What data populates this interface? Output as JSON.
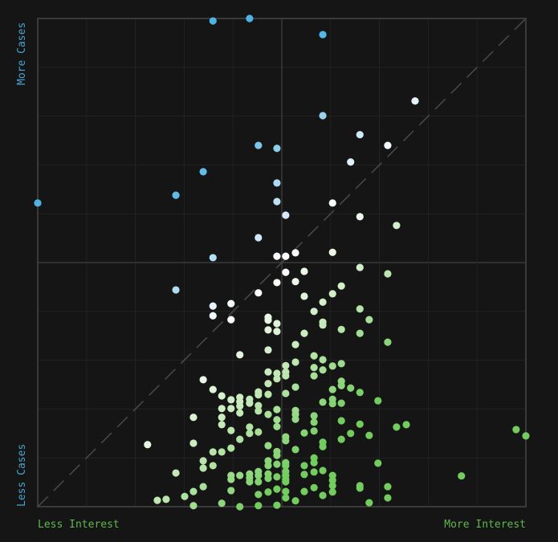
{
  "chart_data": {
    "type": "scatter",
    "title": "",
    "xlabel_low": "Less Interest",
    "xlabel_high": "More Interest",
    "ylabel_low": "Less Cases",
    "ylabel_high": "More Cases",
    "xlim": [
      0,
      100
    ],
    "ylim": [
      0,
      100
    ],
    "grid": true,
    "grid_divisions": 10,
    "quadrant_lines": true,
    "diagonal_reference_line": "dashed",
    "legend": "none",
    "colors": {
      "background": "#151515",
      "grid": "#232323",
      "axis": "#3a3a3a",
      "diagonal": "#4a4a4a",
      "cases_label": "#4aa3cc",
      "interest_label": "#5fb84c",
      "color_stops": [
        {
          "cases_minus_interest": 40,
          "color": "#4db3e4"
        },
        {
          "cases_minus_interest": 15,
          "color": "#b5def3"
        },
        {
          "cases_minus_interest": 0,
          "color": "#ffffff"
        },
        {
          "cases_minus_interest": -20,
          "color": "#c9ebbd"
        },
        {
          "cases_minus_interest": -45,
          "color": "#72cc5e"
        }
      ]
    },
    "points": [
      [
        35.9,
        99.5
      ],
      [
        43.4,
        100
      ],
      [
        58.4,
        96.7
      ],
      [
        0,
        62.2
      ],
      [
        28.3,
        63.8
      ],
      [
        33.9,
        68.6
      ],
      [
        45.2,
        74.0
      ],
      [
        49.0,
        73.4
      ],
      [
        58.4,
        80.1
      ],
      [
        49.0,
        66.3
      ],
      [
        49.0,
        62.5
      ],
      [
        50.8,
        59.7
      ],
      [
        45.2,
        55.1
      ],
      [
        35.9,
        51.0
      ],
      [
        28.3,
        44.4
      ],
      [
        77.3,
        83.1
      ],
      [
        66.0,
        76.2
      ],
      [
        71.7,
        74.0
      ],
      [
        64.1,
        70.6
      ],
      [
        60.4,
        62.2
      ],
      [
        66.0,
        59.4
      ],
      [
        49.0,
        51.3
      ],
      [
        50.8,
        51.3
      ],
      [
        52.8,
        52.0
      ],
      [
        60.4,
        52.1
      ],
      [
        50.8,
        48.0
      ],
      [
        54.6,
        48.2
      ],
      [
        49.0,
        45.9
      ],
      [
        52.8,
        46.1
      ],
      [
        45.2,
        43.8
      ],
      [
        35.9,
        41.1
      ],
      [
        39.6,
        41.6
      ],
      [
        35.9,
        39.1
      ],
      [
        39.6,
        38.3
      ],
      [
        73.5,
        57.6
      ],
      [
        66.0,
        49.0
      ],
      [
        71.7,
        47.7
      ],
      [
        62.2,
        45.2
      ],
      [
        60.4,
        43.6
      ],
      [
        58.4,
        41.9
      ],
      [
        54.6,
        43.1
      ],
      [
        56.6,
        40.0
      ],
      [
        66.0,
        40.5
      ],
      [
        67.9,
        38.3
      ],
      [
        58.4,
        37.8
      ],
      [
        58.4,
        37.2
      ],
      [
        54.6,
        35.5
      ],
      [
        62.2,
        36.3
      ],
      [
        66.0,
        35.5
      ],
      [
        71.7,
        33.7
      ],
      [
        47.2,
        38.8
      ],
      [
        47.2,
        38.2
      ],
      [
        47.2,
        36.2
      ],
      [
        49.0,
        37.5
      ],
      [
        49.0,
        35.9
      ],
      [
        52.8,
        33.2
      ],
      [
        47.2,
        32.1
      ],
      [
        41.4,
        31.1
      ],
      [
        56.6,
        30.9
      ],
      [
        58.4,
        30.1
      ],
      [
        62.2,
        29.3
      ],
      [
        60.4,
        28.8
      ],
      [
        50.8,
        28.9
      ],
      [
        50.8,
        27.6
      ],
      [
        50.8,
        26.8
      ],
      [
        52.8,
        29.6
      ],
      [
        56.6,
        28.5
      ],
      [
        56.6,
        26.8
      ],
      [
        58.4,
        28.0
      ],
      [
        47.2,
        27.6
      ],
      [
        49.0,
        27.3
      ],
      [
        49.0,
        26.2
      ],
      [
        33.9,
        26.0
      ],
      [
        35.9,
        24.0
      ],
      [
        37.7,
        22.7
      ],
      [
        39.6,
        21.9
      ],
      [
        41.4,
        22.4
      ],
      [
        41.4,
        21.5
      ],
      [
        41.4,
        20.6
      ],
      [
        41.4,
        19.2
      ],
      [
        45.2,
        23.5
      ],
      [
        45.2,
        22.9
      ],
      [
        47.2,
        25.2
      ],
      [
        47.2,
        23.0
      ],
      [
        50.8,
        23.2
      ],
      [
        52.8,
        24.5
      ],
      [
        62.2,
        25.7
      ],
      [
        62.2,
        24.8
      ],
      [
        64.1,
        24.3
      ],
      [
        66.0,
        23.4
      ],
      [
        60.4,
        24.0
      ],
      [
        60.4,
        22.0
      ],
      [
        60.4,
        21.1
      ],
      [
        58.4,
        21.4
      ],
      [
        62.2,
        21.2
      ],
      [
        69.7,
        21.7
      ],
      [
        37.7,
        20.1
      ],
      [
        37.7,
        18.3
      ],
      [
        37.7,
        16.8
      ],
      [
        39.6,
        20.1
      ],
      [
        43.4,
        22.0
      ],
      [
        43.4,
        21.2
      ],
      [
        45.2,
        20.7
      ],
      [
        45.2,
        19.6
      ],
      [
        47.2,
        18.9
      ],
      [
        49.0,
        19.9
      ],
      [
        49.0,
        17.8
      ],
      [
        49.0,
        16.4
      ],
      [
        52.8,
        19.7
      ],
      [
        52.8,
        18.9
      ],
      [
        52.8,
        17.9
      ],
      [
        56.6,
        18.6
      ],
      [
        56.6,
        17.3
      ],
      [
        56.6,
        15.5
      ],
      [
        54.6,
        15.1
      ],
      [
        62.2,
        17.6
      ],
      [
        66.0,
        16.9
      ],
      [
        31.9,
        18.3
      ],
      [
        39.6,
        15.6
      ],
      [
        41.4,
        13.8
      ],
      [
        43.4,
        16.3
      ],
      [
        43.4,
        15.0
      ],
      [
        45.2,
        15.3
      ],
      [
        50.8,
        14.3
      ],
      [
        50.8,
        13.5
      ],
      [
        64.1,
        15.0
      ],
      [
        62.2,
        13.8
      ],
      [
        67.9,
        14.6
      ],
      [
        73.5,
        16.3
      ],
      [
        75.5,
        16.8
      ],
      [
        98.0,
        15.8
      ],
      [
        100,
        14.5
      ],
      [
        22.5,
        12.7
      ],
      [
        31.9,
        13.0
      ],
      [
        47.2,
        12.5
      ],
      [
        49.0,
        11.3
      ],
      [
        49.0,
        10.5
      ],
      [
        52.8,
        11.7
      ],
      [
        58.4,
        13.2
      ],
      [
        58.4,
        12.3
      ],
      [
        35.9,
        11.2
      ],
      [
        37.7,
        11.2
      ],
      [
        39.6,
        12.0
      ],
      [
        33.9,
        9.4
      ],
      [
        33.9,
        7.9
      ],
      [
        35.9,
        8.4
      ],
      [
        47.2,
        9.4
      ],
      [
        47.2,
        8.4
      ],
      [
        49.0,
        8.7
      ],
      [
        50.8,
        9.0
      ],
      [
        50.8,
        8.4
      ],
      [
        56.6,
        10.0
      ],
      [
        56.6,
        9.0
      ],
      [
        54.6,
        8.4
      ],
      [
        69.7,
        8.9
      ],
      [
        28.3,
        6.9
      ],
      [
        39.6,
        6.4
      ],
      [
        39.6,
        5.6
      ],
      [
        41.4,
        6.4
      ],
      [
        43.4,
        6.7
      ],
      [
        43.4,
        5.9
      ],
      [
        43.4,
        5.1
      ],
      [
        45.2,
        7.2
      ],
      [
        45.2,
        6.4
      ],
      [
        45.2,
        5.1
      ],
      [
        47.2,
        6.7
      ],
      [
        47.2,
        5.8
      ],
      [
        49.0,
        6.1
      ],
      [
        50.8,
        7.2
      ],
      [
        50.8,
        6.4
      ],
      [
        50.8,
        5.6
      ],
      [
        50.8,
        5.1
      ],
      [
        54.6,
        6.6
      ],
      [
        56.6,
        7.1
      ],
      [
        58.4,
        7.4
      ],
      [
        60.4,
        6.4
      ],
      [
        60.4,
        5.4
      ],
      [
        60.4,
        4.3
      ],
      [
        60.4,
        3.0
      ],
      [
        56.6,
        3.9
      ],
      [
        54.6,
        3.1
      ],
      [
        58.4,
        2.3
      ],
      [
        66.0,
        4.3
      ],
      [
        66.0,
        3.8
      ],
      [
        71.7,
        4.1
      ],
      [
        86.8,
        6.3
      ],
      [
        33.9,
        4.1
      ],
      [
        31.9,
        3.1
      ],
      [
        30.1,
        2.1
      ],
      [
        24.5,
        1.3
      ],
      [
        26.3,
        1.5
      ],
      [
        39.6,
        3.3
      ],
      [
        45.2,
        2.5
      ],
      [
        47.2,
        3.0
      ],
      [
        49.0,
        3.6
      ],
      [
        50.8,
        3.1
      ],
      [
        50.8,
        1.8
      ],
      [
        52.8,
        1.2
      ],
      [
        37.7,
        0.7
      ],
      [
        31.9,
        0.2
      ],
      [
        41.4,
        0
      ],
      [
        45.2,
        0.2
      ],
      [
        49.0,
        0.3
      ],
      [
        67.9,
        0.8
      ],
      [
        71.7,
        1.8
      ]
    ]
  }
}
